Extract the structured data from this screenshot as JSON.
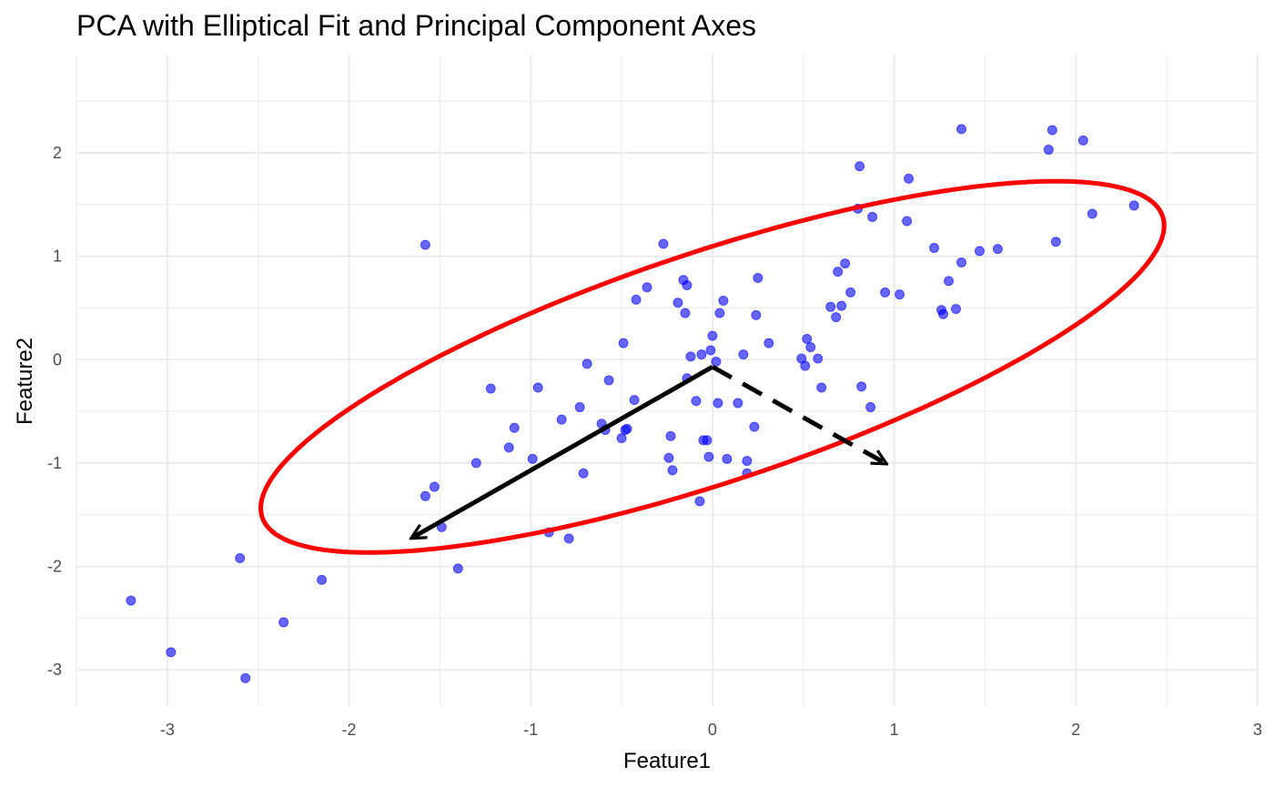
{
  "chart_data": {
    "type": "scatter",
    "title": "PCA with Elliptical Fit and Principal Component Axes",
    "xlabel": "Feature1",
    "ylabel": "Feature2",
    "xlim": [
      -3.5,
      3.0
    ],
    "ylim": [
      -3.35,
      2.95
    ],
    "x_ticks": [
      -3,
      -2,
      -1,
      0,
      1,
      2,
      3
    ],
    "x_tick_labels": [
      "-3",
      "-2",
      "-1",
      "0",
      "1",
      "2",
      "3"
    ],
    "y_ticks": [
      -3,
      -2,
      -1,
      0,
      1,
      2
    ],
    "y_tick_labels": [
      "-3",
      "-2",
      "-1",
      "0",
      "1",
      "2"
    ],
    "grid": true,
    "legend": "none",
    "colors": {
      "points": "#0000ff",
      "ellipse": "#ff0000",
      "axes": "#000000",
      "grid": "#ebebeb"
    },
    "points": [
      {
        "x": -3.2,
        "y": -2.33
      },
      {
        "x": -2.98,
        "y": -2.83
      },
      {
        "x": -2.6,
        "y": -1.92
      },
      {
        "x": -2.57,
        "y": -3.08
      },
      {
        "x": -2.36,
        "y": -2.54
      },
      {
        "x": -2.15,
        "y": -2.13
      },
      {
        "x": -1.58,
        "y": 1.11
      },
      {
        "x": -1.58,
        "y": -1.32
      },
      {
        "x": -1.53,
        "y": -1.23
      },
      {
        "x": -1.49,
        "y": -1.62
      },
      {
        "x": -1.4,
        "y": -2.02
      },
      {
        "x": -1.3,
        "y": -1.0
      },
      {
        "x": -1.22,
        "y": -0.28
      },
      {
        "x": -1.12,
        "y": -0.85
      },
      {
        "x": -1.09,
        "y": -0.66
      },
      {
        "x": -0.99,
        "y": -0.96
      },
      {
        "x": -0.96,
        "y": -0.27
      },
      {
        "x": -0.9,
        "y": -1.67
      },
      {
        "x": -0.83,
        "y": -0.58
      },
      {
        "x": -0.79,
        "y": -1.73
      },
      {
        "x": -0.73,
        "y": -0.46
      },
      {
        "x": -0.71,
        "y": -1.1
      },
      {
        "x": -0.69,
        "y": -0.04
      },
      {
        "x": -0.61,
        "y": -0.62
      },
      {
        "x": -0.59,
        "y": -0.68
      },
      {
        "x": -0.57,
        "y": -0.2
      },
      {
        "x": -0.5,
        "y": -0.76
      },
      {
        "x": -0.49,
        "y": 0.16
      },
      {
        "x": -0.48,
        "y": -0.68
      },
      {
        "x": -0.47,
        "y": -0.67
      },
      {
        "x": -0.43,
        "y": -0.39
      },
      {
        "x": -0.42,
        "y": 0.58
      },
      {
        "x": -0.36,
        "y": 0.7
      },
      {
        "x": -0.27,
        "y": 1.12
      },
      {
        "x": -0.24,
        "y": -0.95
      },
      {
        "x": -0.23,
        "y": -0.74
      },
      {
        "x": -0.22,
        "y": -1.07
      },
      {
        "x": -0.19,
        "y": 0.55
      },
      {
        "x": -0.16,
        "y": 0.77
      },
      {
        "x": -0.15,
        "y": 0.45
      },
      {
        "x": -0.14,
        "y": 0.72
      },
      {
        "x": -0.14,
        "y": -0.18
      },
      {
        "x": -0.12,
        "y": 0.03
      },
      {
        "x": -0.09,
        "y": -0.4
      },
      {
        "x": -0.07,
        "y": -1.37
      },
      {
        "x": -0.06,
        "y": 0.05
      },
      {
        "x": -0.05,
        "y": -0.78
      },
      {
        "x": -0.03,
        "y": -0.78
      },
      {
        "x": -0.02,
        "y": -0.94
      },
      {
        "x": -0.01,
        "y": 0.09
      },
      {
        "x": 0.0,
        "y": 0.23
      },
      {
        "x": 0.02,
        "y": -0.02
      },
      {
        "x": 0.03,
        "y": -0.42
      },
      {
        "x": 0.04,
        "y": 0.45
      },
      {
        "x": 0.06,
        "y": 0.57
      },
      {
        "x": 0.08,
        "y": -0.96
      },
      {
        "x": 0.14,
        "y": -0.42
      },
      {
        "x": 0.17,
        "y": 0.05
      },
      {
        "x": 0.19,
        "y": -0.98
      },
      {
        "x": 0.19,
        "y": -1.1
      },
      {
        "x": 0.23,
        "y": -0.65
      },
      {
        "x": 0.24,
        "y": 0.43
      },
      {
        "x": 0.25,
        "y": 0.79
      },
      {
        "x": 0.31,
        "y": 0.16
      },
      {
        "x": 0.49,
        "y": 0.01
      },
      {
        "x": 0.51,
        "y": -0.06
      },
      {
        "x": 0.52,
        "y": 0.2
      },
      {
        "x": 0.54,
        "y": 0.12
      },
      {
        "x": 0.58,
        "y": 0.01
      },
      {
        "x": 0.6,
        "y": -0.27
      },
      {
        "x": 0.65,
        "y": 0.51
      },
      {
        "x": 0.68,
        "y": 0.41
      },
      {
        "x": 0.69,
        "y": 0.85
      },
      {
        "x": 0.71,
        "y": 0.52
      },
      {
        "x": 0.73,
        "y": 0.93
      },
      {
        "x": 0.76,
        "y": 0.65
      },
      {
        "x": 0.8,
        "y": 1.46
      },
      {
        "x": 0.81,
        "y": 1.87
      },
      {
        "x": 0.82,
        "y": -0.26
      },
      {
        "x": 0.87,
        "y": -0.46
      },
      {
        "x": 0.88,
        "y": 1.38
      },
      {
        "x": 0.95,
        "y": 0.65
      },
      {
        "x": 1.03,
        "y": 0.63
      },
      {
        "x": 1.07,
        "y": 1.34
      },
      {
        "x": 1.08,
        "y": 1.75
      },
      {
        "x": 1.22,
        "y": 1.08
      },
      {
        "x": 1.26,
        "y": 0.48
      },
      {
        "x": 1.27,
        "y": 0.44
      },
      {
        "x": 1.3,
        "y": 0.76
      },
      {
        "x": 1.34,
        "y": 0.49
      },
      {
        "x": 1.37,
        "y": 2.23
      },
      {
        "x": 1.37,
        "y": 0.94
      },
      {
        "x": 1.47,
        "y": 1.05
      },
      {
        "x": 1.57,
        "y": 1.07
      },
      {
        "x": 1.85,
        "y": 2.03
      },
      {
        "x": 1.87,
        "y": 2.22
      },
      {
        "x": 1.89,
        "y": 1.14
      },
      {
        "x": 2.04,
        "y": 2.12
      },
      {
        "x": 2.09,
        "y": 1.41
      },
      {
        "x": 2.32,
        "y": 1.49
      }
    ],
    "ellipse": {
      "center": [
        0.0,
        -0.07
      ],
      "semi_axis_major": 2.9,
      "semi_axis_minor": 1.0,
      "major_direction": [
        0.836,
        0.548
      ],
      "minor_direction": [
        -0.548,
        0.836
      ]
    },
    "pc_axes": [
      {
        "from": [
          0.0,
          -0.07
        ],
        "to": [
          -1.65,
          -1.72
        ],
        "style": "solid"
      },
      {
        "from": [
          0.0,
          -0.07
        ],
        "to": [
          0.95,
          -1.0
        ],
        "style": "dashed"
      }
    ]
  }
}
